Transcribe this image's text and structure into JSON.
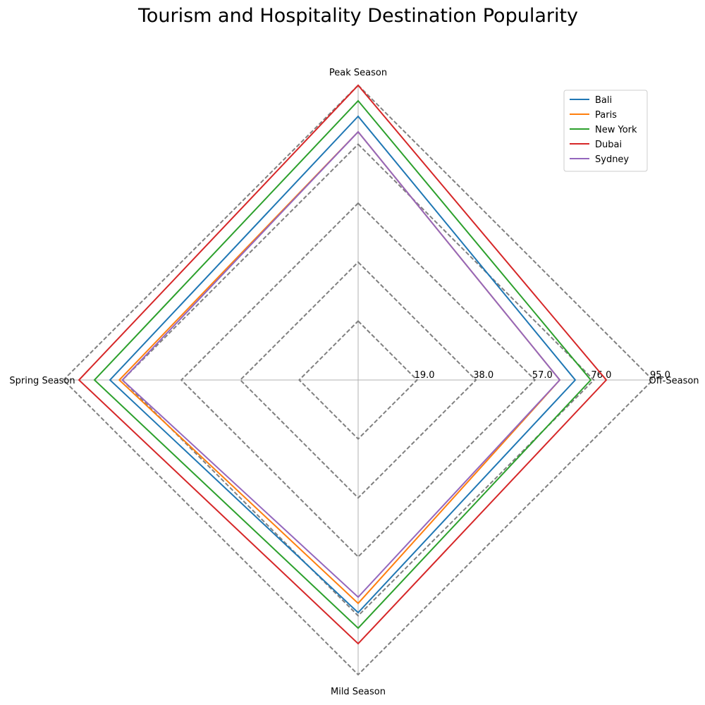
{
  "chart_data": {
    "type": "radar",
    "title": "Tourism and Hospitality Destination Popularity",
    "axes": [
      "Peak Season",
      "Off-Season",
      "Mild Season",
      "Spring Season"
    ],
    "rlim": [
      0,
      95
    ],
    "rticks": [
      19,
      38,
      57,
      76,
      95
    ],
    "rtick_labels": [
      "19.0",
      "38.0",
      "57.0",
      "76.0",
      "95.0"
    ],
    "grid": true,
    "legend_position": "top-right",
    "series": [
      {
        "name": " Bali",
        "color": "#1f77b4",
        "values": [
          85,
          70,
          75,
          80
        ]
      },
      {
        "name": " Paris",
        "color": "#ff7f0e",
        "values": [
          80,
          65,
          72,
          77
        ]
      },
      {
        "name": " New York",
        "color": "#2ca02c",
        "values": [
          90,
          75,
          80,
          85
        ]
      },
      {
        "name": " Dubai",
        "color": "#d62728",
        "values": [
          95,
          80,
          85,
          90
        ]
      },
      {
        "name": " Sydney",
        "color": "#9467bd",
        "values": [
          80,
          65,
          70,
          76
        ]
      }
    ],
    "gridline_color": "#808080",
    "spoke_color": "#b0b0b0"
  }
}
